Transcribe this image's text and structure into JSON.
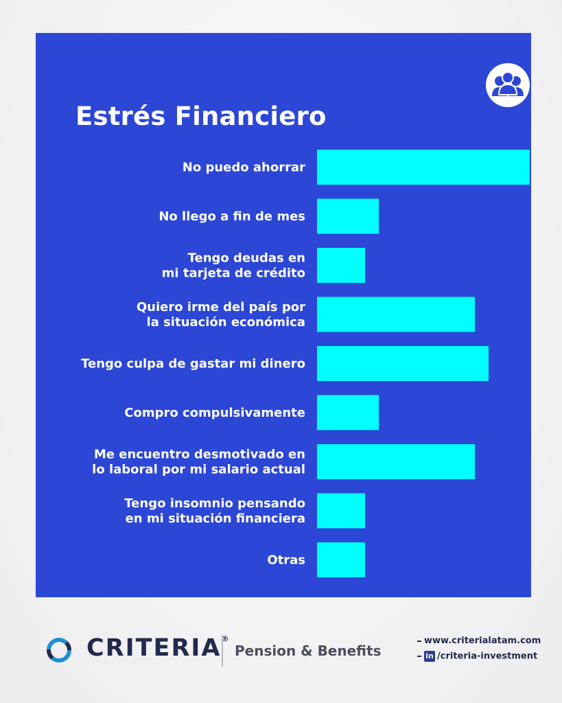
{
  "header": {
    "title": "Estrés Financiero",
    "badge_icon": "people-group-icon"
  },
  "chart_data": {
    "type": "bar",
    "orientation": "horizontal",
    "title": "Estrés Financiero",
    "categories": [
      [
        "No puedo ahorrar"
      ],
      [
        "No llego a fin de mes"
      ],
      [
        "Tengo deudas en",
        "mi tarjeta de crédito"
      ],
      [
        "Quiero irme del país por",
        "la situación económica"
      ],
      [
        "Tengo culpa de gastar mi dinero"
      ],
      [
        "Compro compulsivamente"
      ],
      [
        "Me encuentro desmotivado en",
        "lo laboral por mi salario actual"
      ],
      [
        "Tengo insomnio pensando",
        "en mi situación financiera"
      ],
      [
        "Otras"
      ]
    ],
    "values": [
      31,
      9,
      7,
      23,
      25,
      9,
      23,
      7,
      7
    ],
    "xlim": [
      0,
      31
    ],
    "grid": false,
    "bar_color": "#00ffff",
    "background_color": "#2c46d6"
  },
  "footer": {
    "brand": "CRITERIA",
    "brand_mark": "®",
    "tagline": "Pension & Benefits",
    "website": "www.criterialatam.com",
    "linkedin_badge": "in",
    "linkedin": "/criteria-investment",
    "logo_icon": "criteria-ring-logo-icon"
  },
  "colors": {
    "panel": "#2c46d6",
    "bars": "#00ffff",
    "brand_text": "#222a4c"
  }
}
